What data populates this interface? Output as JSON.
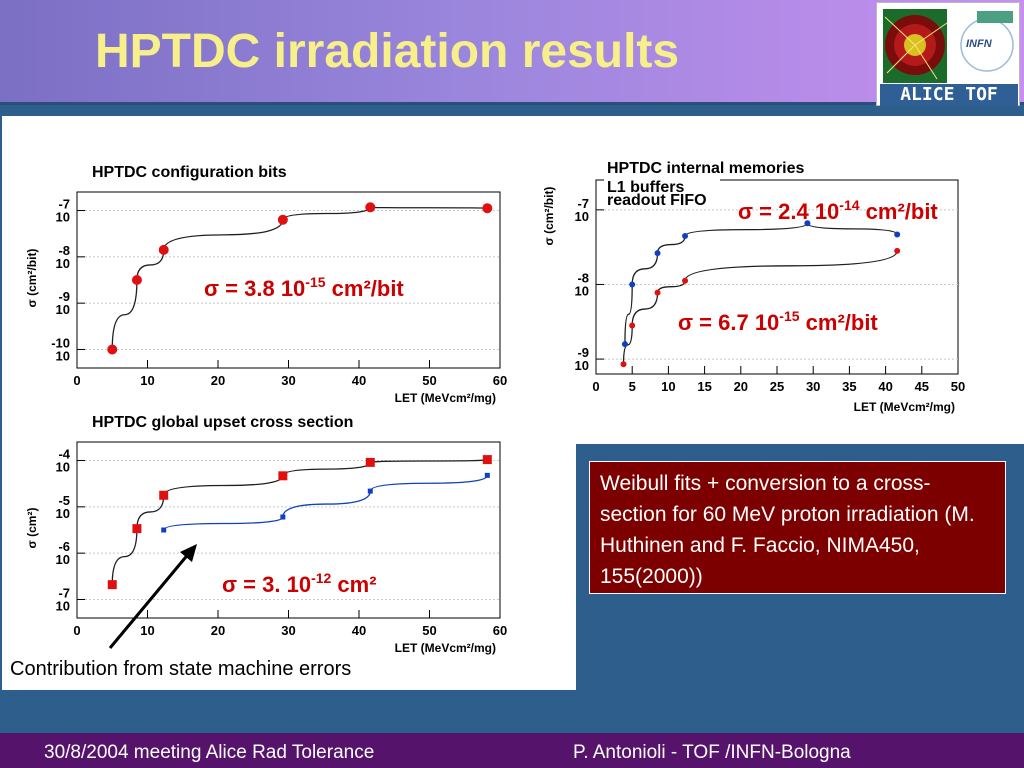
{
  "title": "HPTDC irradiation results",
  "logo": {
    "infn_label": "INFN",
    "bottom_label": "ALICE  TOF"
  },
  "annotation": "Contribution from state machine errors",
  "note": "Weibull fits + conversion to a cross-section for 60 MeV proton irradiation (M. Huthinen and F. Faccio, NIMA450, 155(2000))",
  "footer": {
    "left": "30/8/2004 meeting Alice Rad Tolerance",
    "right": "P. Antonioli - TOF /INFN-Bologna"
  },
  "colors": {
    "red_points": "#e01010",
    "blue_points": "#1040c0",
    "note_bg": "#7d0000",
    "title": "#f7f08a",
    "footer_bg": "#56136b"
  },
  "chart_data": [
    {
      "type": "scatter",
      "title": "HPTDC configuration bits",
      "xlabel": "LET (MeVcm²/mg)",
      "ylabel": "σ (cm²/bit)",
      "xlim": [
        0,
        60
      ],
      "xticks": [
        0,
        10,
        20,
        30,
        40,
        50,
        60
      ],
      "yscale": "log",
      "ylim_exp": [
        -10.4,
        -6.6
      ],
      "yticks_exp": [
        -10,
        -9,
        -8,
        -7
      ],
      "series": [
        {
          "color": "red",
          "x": [
            5,
            8.5,
            12.3,
            29.2,
            41.6,
            58.2
          ],
          "y_exp": [
            -10.0,
            -8.5,
            -7.85,
            -7.2,
            -6.93,
            -6.95
          ]
        }
      ],
      "fit_label": {
        "pre": "σ = 3.8 10",
        "exp": "-15",
        "post": " cm²/bit"
      }
    },
    {
      "type": "scatter",
      "title": "HPTDC internal memories",
      "legend": [
        "L1 buffers",
        "readout FIFO"
      ],
      "xlabel": "LET (MeVcm²/mg)",
      "ylabel": "σ (cm²/bit)",
      "xlim": [
        0,
        50
      ],
      "xticks": [
        0,
        5,
        10,
        15,
        20,
        25,
        30,
        35,
        40,
        45,
        50
      ],
      "yscale": "log",
      "ylim_exp": [
        -9.2,
        -6.6
      ],
      "yticks_exp": [
        -9,
        -8,
        -7
      ],
      "series": [
        {
          "name": "L1 buffers",
          "color": "blue",
          "x": [
            4,
            5,
            8.5,
            12.3,
            29.2,
            41.6
          ],
          "y_exp": [
            -8.8,
            -8.0,
            -7.58,
            -7.35,
            -7.18,
            -7.33
          ]
        },
        {
          "name": "readout FIFO",
          "color": "red",
          "x": [
            3.8,
            5,
            8.5,
            12.3,
            41.6
          ],
          "y_exp": [
            -9.07,
            -8.55,
            -8.11,
            -7.95,
            -7.55
          ]
        }
      ],
      "fit_labels": [
        {
          "pre": "σ = 2.4 10",
          "exp": "-14",
          "post": " cm²/bit"
        },
        {
          "pre": "σ = 6.7 10",
          "exp": "-15",
          "post": " cm²/bit"
        }
      ]
    },
    {
      "type": "scatter",
      "title": "HPTDC global upset cross section",
      "xlabel": "LET (MeVcm²/mg)",
      "ylabel": "σ (cm²)",
      "xlim": [
        0,
        60
      ],
      "xticks": [
        0,
        10,
        20,
        30,
        40,
        50,
        60
      ],
      "yscale": "log",
      "ylim_exp": [
        -7.4,
        -3.6
      ],
      "yticks_exp": [
        -7,
        -6,
        -5,
        -4
      ],
      "series": [
        {
          "color": "red",
          "x": [
            5,
            8.5,
            12.3,
            29.2,
            41.6,
            58.2
          ],
          "y_exp": [
            -6.68,
            -5.47,
            -4.75,
            -4.33,
            -4.04,
            -3.98
          ]
        },
        {
          "color": "blue",
          "x": [
            12.3,
            29.2,
            41.6,
            58.2
          ],
          "y_exp": [
            -5.5,
            -5.22,
            -4.66,
            -4.32
          ]
        }
      ],
      "fit_label": {
        "pre": "σ = 3. 10",
        "exp": "-12",
        "post": " cm²"
      }
    }
  ]
}
